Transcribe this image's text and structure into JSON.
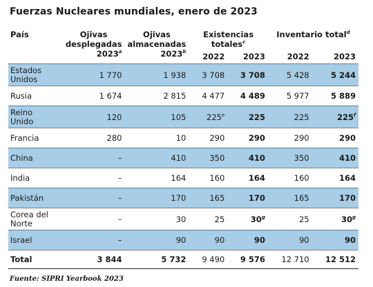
{
  "title": "Fuerzas Nucleares mundiales, enero de 2023",
  "header": {
    "pais": "País",
    "desplegadas_l1": "Ojivas",
    "desplegadas_l2": "desplegadas",
    "desplegadas_l3": "2023",
    "desplegadas_note": "a",
    "almacenadas_l1": "Ojivas",
    "almacenadas_l2": "almacenadas",
    "almacenadas_l3": "2023",
    "almacenadas_note": "b",
    "existencias": "Existencias totales",
    "existencias_note": "c",
    "inventario": "Inventario total",
    "inventario_note": "d",
    "y2022a": "2022",
    "y2023a": "2023",
    "y2022b": "2022",
    "y2023b": "2023"
  },
  "rows": [
    {
      "country_l1": "Estados",
      "country_l2": "Unidos",
      "deployed": "1 770",
      "stored": "1 938",
      "exist2022": "3 708",
      "exist2022_note": "",
      "exist2023": "3 708",
      "exist2023_note": "",
      "inv2022": "5 428",
      "inv2023": "5 244",
      "inv2023_note": ""
    },
    {
      "country_l1": "Rusia",
      "country_l2": "",
      "deployed": "1 674",
      "stored": "2 815",
      "exist2022": "4 477",
      "exist2022_note": "",
      "exist2023": "4 489",
      "exist2023_note": "",
      "inv2022": "5 977",
      "inv2023": "5 889",
      "inv2023_note": ""
    },
    {
      "country_l1": "Reino",
      "country_l2": "Unido",
      "deployed": "120",
      "stored": "105",
      "exist2022": "225",
      "exist2022_note": "e",
      "exist2023": "225",
      "exist2023_note": "",
      "inv2022": "225",
      "inv2023": "225",
      "inv2023_note": "f"
    },
    {
      "country_l1": "Francia",
      "country_l2": "",
      "deployed": "280",
      "stored": "10",
      "exist2022": "290",
      "exist2022_note": "",
      "exist2023": "290",
      "exist2023_note": "",
      "inv2022": "290",
      "inv2023": "290",
      "inv2023_note": ""
    },
    {
      "country_l1": "China",
      "country_l2": "",
      "deployed": "–",
      "stored": "410",
      "exist2022": "350",
      "exist2022_note": "",
      "exist2023": "410",
      "exist2023_note": "",
      "inv2022": "350",
      "inv2023": "410",
      "inv2023_note": ""
    },
    {
      "country_l1": "India",
      "country_l2": "",
      "deployed": "–",
      "stored": "164",
      "exist2022": "160",
      "exist2022_note": "",
      "exist2023": "164",
      "exist2023_note": "",
      "inv2022": "160",
      "inv2023": "164",
      "inv2023_note": ""
    },
    {
      "country_l1": "Pakistán",
      "country_l2": "",
      "deployed": "–",
      "stored": "170",
      "exist2022": "165",
      "exist2022_note": "",
      "exist2023": "170",
      "exist2023_note": "",
      "inv2022": "165",
      "inv2023": "170",
      "inv2023_note": ""
    },
    {
      "country_l1": "Corea del",
      "country_l2": "Norte",
      "deployed": "–",
      "stored": "30",
      "exist2022": "25",
      "exist2022_note": "",
      "exist2023": "30",
      "exist2023_note": "g",
      "inv2022": "25",
      "inv2023": "30",
      "inv2023_note": "g"
    },
    {
      "country_l1": "Israel",
      "country_l2": "",
      "deployed": "–",
      "stored": "90",
      "exist2022": "90",
      "exist2022_note": "",
      "exist2023": "90",
      "exist2023_note": "",
      "inv2022": "90",
      "inv2023": "90",
      "inv2023_note": ""
    }
  ],
  "total": {
    "label": "Total",
    "deployed": "3 844",
    "stored": "5 732",
    "exist2022": "9 490",
    "exist2023": "9 576",
    "inv2022": "12 710",
    "inv2023": "12 512"
  },
  "source": "Fuente: SIPRI Yearbook 2023",
  "colors": {
    "row_shade": "#a8cde6"
  }
}
